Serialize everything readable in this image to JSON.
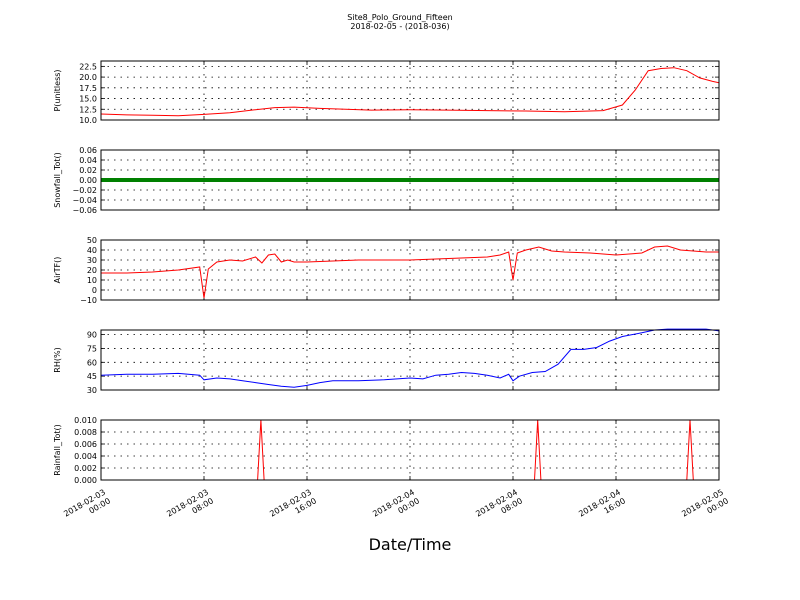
{
  "chart_data": {
    "type": "line",
    "title": "Site8_Polo_Ground_Fifteen",
    "subtitle": "2018-02-05 - (2018-036)",
    "xlabel": "Date/Time",
    "xlim": [
      "2018-02-03 00:00",
      "2018-02-05 00:00"
    ],
    "x_ticks": [
      {
        "t": "2018-02-03 00:00",
        "line1": "2018-02-03",
        "line2": "00:00"
      },
      {
        "t": "2018-02-03 08:00",
        "line1": "2018-02-03",
        "line2": "08:00"
      },
      {
        "t": "2018-02-03 16:00",
        "line1": "2018-02-03",
        "line2": "16:00"
      },
      {
        "t": "2018-02-04 00:00",
        "line1": "2018-02-04",
        "line2": "00:00"
      },
      {
        "t": "2018-02-04 08:00",
        "line1": "2018-02-04",
        "line2": "08:00"
      },
      {
        "t": "2018-02-04 16:00",
        "line1": "2018-02-04",
        "line2": "16:00"
      },
      {
        "t": "2018-02-05 00:00",
        "line1": "2018-02-05",
        "line2": "00:00"
      }
    ],
    "grid": true,
    "panels": [
      {
        "ylabel": "P(unitless)",
        "ylim": [
          10.0,
          23.75
        ],
        "yticks": [
          "10.0",
          "12.5",
          "15.0",
          "17.5",
          "20.0",
          "22.5"
        ],
        "series": [
          {
            "color": "#ff0000",
            "x": [
              "2018-02-03 00:00",
              "2018-02-03 02:00",
              "2018-02-03 04:00",
              "2018-02-03 06:00",
              "2018-02-03 08:00",
              "2018-02-03 10:00",
              "2018-02-03 12:00",
              "2018-02-03 13:30",
              "2018-02-03 15:00",
              "2018-02-03 17:00",
              "2018-02-03 19:00",
              "2018-02-03 21:00",
              "2018-02-04 00:00",
              "2018-02-04 03:00",
              "2018-02-04 06:00",
              "2018-02-04 09:00",
              "2018-02-04 12:00",
              "2018-02-04 15:00",
              "2018-02-04 16:30",
              "2018-02-04 17:30",
              "2018-02-04 18:30",
              "2018-02-04 19:30",
              "2018-02-04 20:30",
              "2018-02-04 21:30",
              "2018-02-04 22:30",
              "2018-02-04 23:30",
              "2018-02-05 00:00"
            ],
            "y": [
              11.4,
              11.2,
              11.1,
              11.0,
              11.3,
              11.7,
              12.4,
              12.9,
              13.0,
              12.7,
              12.5,
              12.3,
              12.4,
              12.3,
              12.2,
              12.1,
              11.9,
              12.2,
              13.5,
              17.0,
              21.5,
              22.0,
              22.2,
              21.5,
              19.8,
              19.0,
              18.7
            ]
          }
        ]
      },
      {
        "ylabel": "Snowfall_Tot()",
        "ylim": [
          -0.06,
          0.06
        ],
        "yticks": [
          "−0.06",
          "−0.04",
          "−0.02",
          "0.00",
          "0.02",
          "0.04",
          "0.06"
        ],
        "series": [
          {
            "color": "#008000",
            "x": [
              "2018-02-03 00:00",
              "2018-02-05 00:00"
            ],
            "y": [
              0.0,
              0.0
            ]
          }
        ]
      },
      {
        "ylabel": "AirTF()",
        "ylim": [
          -10,
          50
        ],
        "yticks": [
          "−10",
          "0",
          "10",
          "20",
          "30",
          "40",
          "50"
        ],
        "series": [
          {
            "color": "#ff0000",
            "x": [
              "2018-02-03 00:00",
              "2018-02-03 02:00",
              "2018-02-03 04:00",
              "2018-02-03 06:00",
              "2018-02-03 07:40",
              "2018-02-03 08:00",
              "2018-02-03 08:20",
              "2018-02-03 09:00",
              "2018-02-03 10:00",
              "2018-02-03 11:00",
              "2018-02-03 12:00",
              "2018-02-03 12:30",
              "2018-02-03 13:00",
              "2018-02-03 13:30",
              "2018-02-03 14:00",
              "2018-02-03 14:30",
              "2018-02-03 15:00",
              "2018-02-03 16:00",
              "2018-02-03 18:00",
              "2018-02-03 20:00",
              "2018-02-03 22:00",
              "2018-02-04 00:00",
              "2018-02-04 02:00",
              "2018-02-04 04:00",
              "2018-02-04 06:00",
              "2018-02-04 07:00",
              "2018-02-04 07:40",
              "2018-02-04 08:00",
              "2018-02-04 08:20",
              "2018-02-04 09:00",
              "2018-02-04 10:00",
              "2018-02-04 11:00",
              "2018-02-04 12:00",
              "2018-02-04 14:00",
              "2018-02-04 16:00",
              "2018-02-04 18:00",
              "2018-02-04 19:00",
              "2018-02-04 20:00",
              "2018-02-04 21:00",
              "2018-02-04 22:00",
              "2018-02-04 23:00",
              "2018-02-05 00:00"
            ],
            "y": [
              17,
              17,
              18,
              20,
              23,
              -8,
              21,
              28,
              30,
              29,
              33,
              27,
              35,
              36,
              28,
              30,
              28,
              28,
              29,
              30,
              30,
              30,
              31,
              32,
              33,
              35,
              38,
              10,
              37,
              40,
              43,
              39,
              38,
              37,
              35,
              37,
              43,
              44,
              40,
              39,
              38,
              38
            ]
          }
        ]
      },
      {
        "ylabel": "RH(%)",
        "ylim": [
          30,
          95
        ],
        "yticks": [
          "30",
          "45",
          "60",
          "75",
          "90"
        ],
        "series": [
          {
            "color": "#0000ff",
            "x": [
              "2018-02-03 00:00",
              "2018-02-03 02:00",
              "2018-02-03 04:00",
              "2018-02-03 06:00",
              "2018-02-03 07:40",
              "2018-02-03 08:00",
              "2018-02-03 09:00",
              "2018-02-03 10:00",
              "2018-02-03 11:00",
              "2018-02-03 12:00",
              "2018-02-03 13:00",
              "2018-02-03 14:00",
              "2018-02-03 15:00",
              "2018-02-03 16:00",
              "2018-02-03 17:00",
              "2018-02-03 18:00",
              "2018-02-03 20:00",
              "2018-02-03 22:00",
              "2018-02-04 00:00",
              "2018-02-04 01:00",
              "2018-02-04 02:00",
              "2018-02-04 03:00",
              "2018-02-04 04:00",
              "2018-02-04 05:00",
              "2018-02-04 06:00",
              "2018-02-04 07:00",
              "2018-02-04 07:40",
              "2018-02-04 08:00",
              "2018-02-04 08:30",
              "2018-02-04 09:30",
              "2018-02-04 10:30",
              "2018-02-04 11:30",
              "2018-02-04 12:30",
              "2018-02-04 13:30",
              "2018-02-04 14:30",
              "2018-02-04 15:30",
              "2018-02-04 16:30",
              "2018-02-04 18:00",
              "2018-02-04 19:00",
              "2018-02-04 20:00",
              "2018-02-04 21:00",
              "2018-02-04 22:00",
              "2018-02-04 23:00",
              "2018-02-05 00:00"
            ],
            "y": [
              46,
              47,
              47,
              48,
              46,
              41,
              43,
              42,
              40,
              38,
              36,
              34,
              33,
              35,
              38,
              40,
              40,
              41,
              43,
              42,
              46,
              47,
              49,
              48,
              46,
              43,
              47,
              40,
              45,
              49,
              50,
              58,
              74,
              74,
              76,
              83,
              88,
              92,
              95,
              96,
              96,
              96,
              96,
              94
            ]
          }
        ]
      },
      {
        "ylabel": "Rainfall_Tot()",
        "ylim": [
          0,
          0.01
        ],
        "yticks": [
          "0.000",
          "0.002",
          "0.004",
          "0.006",
          "0.008",
          "0.010"
        ],
        "series": [
          {
            "color": "#ff0000",
            "x": [
              "2018-02-03 00:00",
              "2018-02-03 12:10",
              "2018-02-03 12:25",
              "2018-02-03 12:40",
              "2018-02-04 09:40",
              "2018-02-04 09:55",
              "2018-02-04 10:10",
              "2018-02-04 21:30",
              "2018-02-04 21:45",
              "2018-02-04 22:00",
              "2018-02-05 00:00"
            ],
            "y": [
              0,
              0,
              0.01,
              0,
              0,
              0.01,
              0,
              0,
              0.01,
              0,
              0
            ]
          }
        ]
      }
    ]
  }
}
